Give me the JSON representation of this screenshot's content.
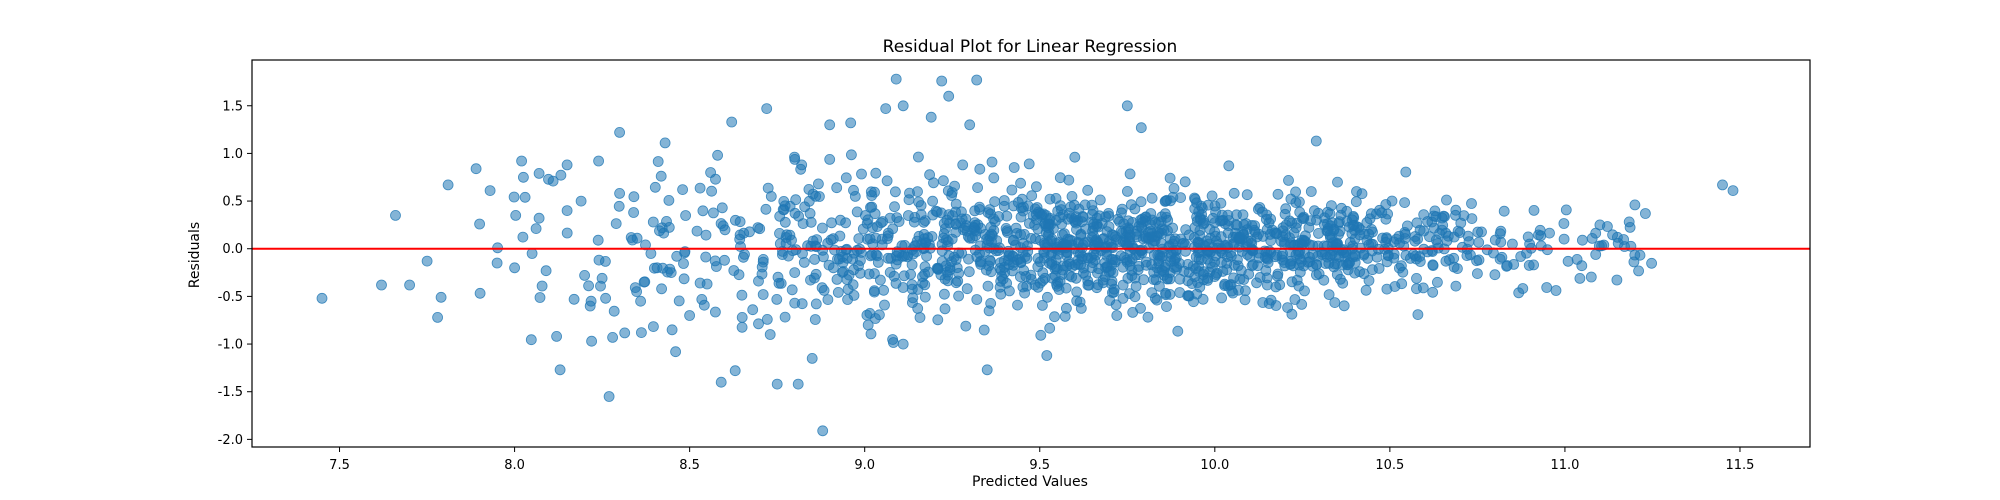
{
  "chart_data": {
    "type": "scatter",
    "title": "Residual Plot for Linear Regression",
    "xlabel": "Predicted Values",
    "ylabel": "Residuals",
    "xlim": [
      7.25,
      11.7
    ],
    "ylim": [
      -2.08,
      1.98
    ],
    "xticks": [
      "7.5",
      "8.0",
      "8.5",
      "9.0",
      "9.5",
      "10.0",
      "10.5",
      "11.0",
      "11.5"
    ],
    "yticks": [
      "-2.0",
      "-1.5",
      "-1.0",
      "-0.5",
      "0.0",
      "0.5",
      "1.0",
      "1.5"
    ],
    "grid": false,
    "legend": "none",
    "reference_line": {
      "y": 0,
      "color": "#ff0000"
    },
    "point_color": "#1f77b4",
    "point_alpha": 0.55,
    "series": [
      {
        "x": [
          7.45,
          7.62,
          7.66,
          7.7,
          7.75,
          7.78,
          7.79,
          7.81,
          7.89,
          7.9,
          7.93,
          7.95,
          8.0,
          8.02,
          8.03,
          8.07,
          8.07,
          8.09,
          8.11,
          8.12,
          8.13,
          8.15,
          8.17,
          8.19,
          8.2,
          8.22,
          8.24,
          8.26,
          8.27,
          8.28,
          8.3,
          8.3,
          8.34,
          8.36,
          8.37,
          8.42,
          8.43,
          8.45,
          8.46,
          8.48,
          8.5,
          8.53,
          8.56,
          8.58,
          8.59,
          8.62,
          8.63,
          8.65,
          8.71,
          8.72,
          8.73,
          8.75,
          8.8,
          8.81,
          8.82,
          8.85,
          8.86,
          8.9,
          8.92,
          8.96,
          9.01,
          9.06,
          9.09,
          9.11,
          9.11,
          9.19,
          9.22,
          9.24,
          9.25,
          9.28,
          9.3,
          9.32,
          9.35,
          9.41,
          9.47,
          9.52,
          9.6,
          9.72,
          9.75,
          9.79,
          9.85,
          9.95,
          10.04,
          10.15,
          10.29,
          10.35,
          10.55,
          10.85,
          11.05,
          11.2,
          11.45,
          11.48,
          11.23,
          11.1,
          10.95,
          10.7,
          10.45,
          10.2,
          9.9,
          9.65,
          9.4,
          9.15,
          8.95,
          8.7,
          8.55,
          8.35,
          8.25,
          8.15,
          8.05,
          8.88,
          9.05,
          9.33,
          9.58,
          9.82,
          10.08,
          10.33,
          10.62,
          10.82,
          11.15,
          8.68,
          9.45
        ],
        "y": [
          -0.52,
          -0.38,
          0.35,
          -0.38,
          -0.13,
          -0.72,
          -0.51,
          0.67,
          0.84,
          0.26,
          0.61,
          -0.15,
          -0.2,
          0.92,
          0.54,
          0.79,
          0.32,
          -0.23,
          0.71,
          -0.92,
          -1.27,
          0.88,
          -0.53,
          0.5,
          -0.28,
          -0.97,
          0.92,
          -0.52,
          -1.55,
          -0.93,
          0.58,
          1.22,
          0.38,
          -0.55,
          -0.35,
          -0.42,
          1.11,
          -0.85,
          -1.08,
          0.62,
          -0.7,
          -0.36,
          0.8,
          0.98,
          -1.4,
          1.33,
          -1.28,
          -0.72,
          -0.48,
          1.47,
          -0.9,
          -1.42,
          -0.57,
          -1.42,
          0.88,
          -1.15,
          0.55,
          1.3,
          0.64,
          1.32,
          -0.8,
          1.47,
          1.78,
          1.5,
          -1.0,
          1.38,
          1.76,
          1.6,
          0.59,
          0.88,
          1.3,
          1.77,
          -1.27,
          -0.12,
          0.89,
          -1.12,
          0.96,
          -0.7,
          1.5,
          1.27,
          -0.08,
          0.29,
          0.87,
          -0.38,
          1.13,
          -0.27,
          0.24,
          0.05,
          0.09,
          0.46,
          0.67,
          0.61,
          0.37,
          0.25,
          -0.01,
          0.17,
          -0.22,
          -0.18,
          -0.32,
          0.36,
          -0.25,
          0.08,
          -0.1,
          0.21,
          -0.37,
          0.11,
          -0.31,
          0.4,
          -0.05,
          -1.91,
          0.04,
          -0.14,
          0.31,
          -0.46,
          0.18,
          -0.07,
          0.28,
          -0.09,
          0.12,
          -0.64,
          0.52
        ]
      }
    ]
  }
}
